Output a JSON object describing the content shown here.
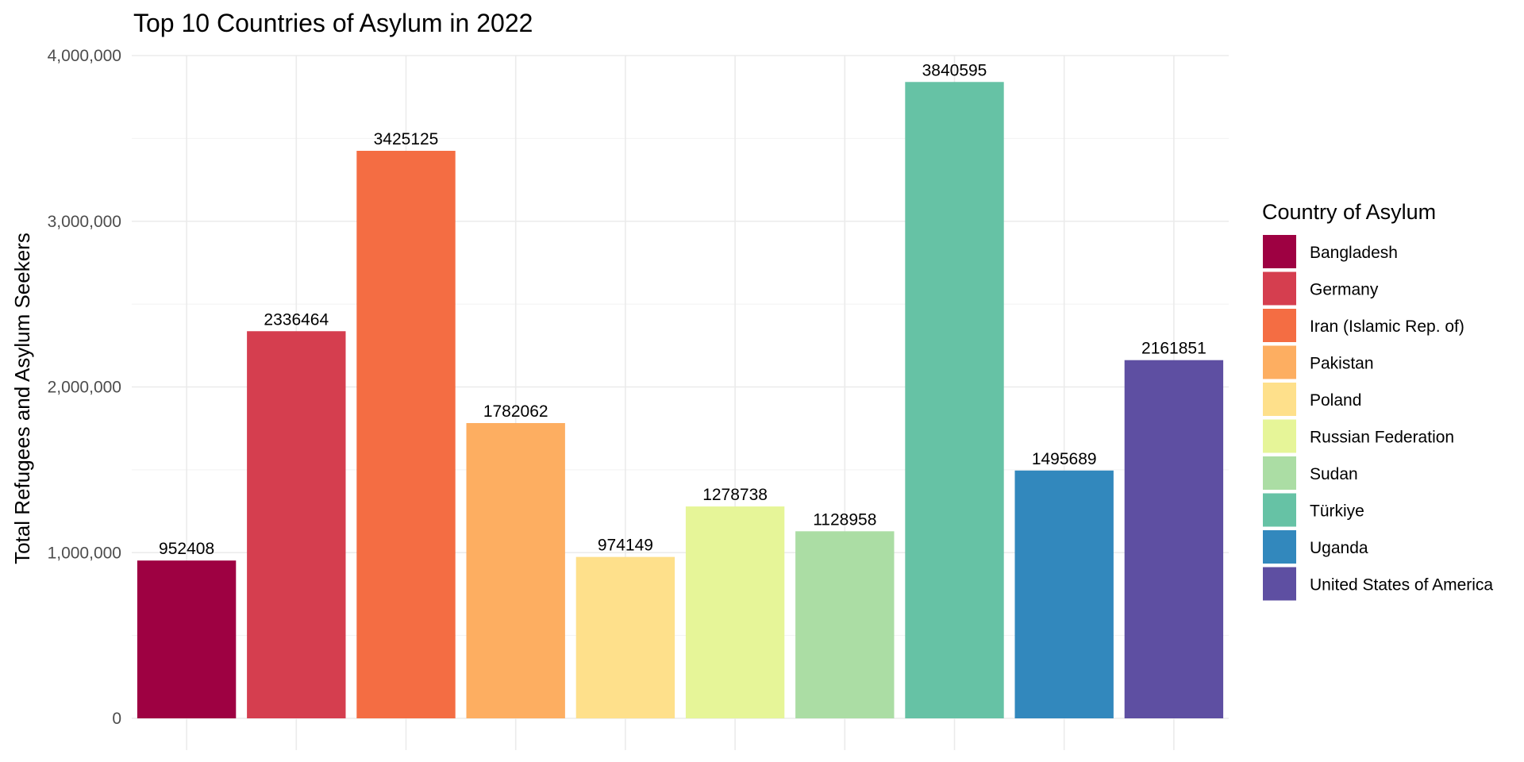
{
  "chart_data": {
    "type": "bar",
    "title": "Top 10 Countries of Asylum in 2022",
    "xlabel": "",
    "ylabel": "Total Refugees and Asylum Seekers",
    "ylim": [
      0,
      4000000
    ],
    "yticks": [
      0,
      1000000,
      2000000,
      3000000,
      4000000
    ],
    "ytick_labels": [
      "0",
      "1,000,000",
      "2,000,000",
      "3,000,000",
      "4,000,000"
    ],
    "categories": [
      "Bangladesh",
      "Germany",
      "Iran (Islamic Rep. of)",
      "Pakistan",
      "Poland",
      "Russian Federation",
      "Sudan",
      "Türkiye",
      "Uganda",
      "United States of America"
    ],
    "values": [
      952408,
      2336464,
      3425125,
      1782062,
      974149,
      1278738,
      1128958,
      3840595,
      1495689,
      2161851
    ],
    "data_labels": [
      "952408",
      "2336464",
      "3425125",
      "1782062",
      "974149",
      "1278738",
      "1128958",
      "3840595",
      "1495689",
      "2161851"
    ],
    "colors": [
      "#9E0142",
      "#D53E4F",
      "#F46D43",
      "#FDAE61",
      "#FEE08B",
      "#E6F598",
      "#ABDDA4",
      "#66C2A5",
      "#3288BD",
      "#5E4FA2"
    ],
    "grid": true,
    "legend": {
      "title": "Country of Asylum",
      "placement": "right"
    }
  }
}
